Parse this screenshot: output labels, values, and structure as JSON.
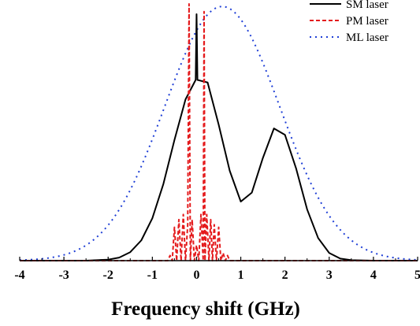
{
  "chart_data": {
    "type": "line",
    "xlabel": "Frequency shift (GHz)",
    "ylabel": "",
    "title": "",
    "xlim": [
      -4,
      5
    ],
    "ylim": [
      0,
      1
    ],
    "x_ticks": [
      "-4",
      "-3",
      "-2",
      "-1",
      "0",
      "1",
      "2",
      "3",
      "4",
      "5"
    ],
    "legend_position": "top-right",
    "colors": {
      "sm": "#000000",
      "pm": "#e41a1c",
      "ml": "#1f3fd6"
    },
    "series": [
      {
        "name": "SM laser",
        "style": "solid",
        "color": "#000000",
        "x": [
          -4.0,
          -2.5,
          -2.0,
          -1.75,
          -1.5,
          -1.25,
          -1.0,
          -0.75,
          -0.5,
          -0.25,
          -0.02,
          0.0,
          0.02,
          0.25,
          0.5,
          0.75,
          1.0,
          1.25,
          1.5,
          1.75,
          2.0,
          2.25,
          2.5,
          2.75,
          3.0,
          3.25,
          3.5,
          4.0,
          5.0
        ],
        "y": [
          0.0,
          0.0,
          0.004,
          0.012,
          0.033,
          0.079,
          0.165,
          0.299,
          0.47,
          0.628,
          0.704,
          0.96,
          0.704,
          0.694,
          0.53,
          0.35,
          0.23,
          0.265,
          0.4,
          0.515,
          0.49,
          0.36,
          0.2,
          0.088,
          0.03,
          0.008,
          0.002,
          0.0,
          0.0
        ]
      },
      {
        "name": "PM laser",
        "style": "dashed",
        "color": "#e41a1c",
        "x": [
          -4.0,
          -0.65,
          -0.6,
          -0.55,
          -0.5,
          -0.45,
          -0.4,
          -0.35,
          -0.3,
          -0.25,
          -0.2,
          -0.17,
          -0.14,
          -0.1,
          -0.05,
          0.0,
          0.05,
          0.1,
          0.15,
          0.17,
          0.19,
          0.23,
          0.28,
          0.32,
          0.36,
          0.4,
          0.45,
          0.5,
          0.55,
          0.6,
          0.65,
          0.7,
          0.75,
          5.0
        ],
        "y": [
          0.0,
          0.0,
          0.02,
          0.0,
          0.13,
          0.0,
          0.16,
          0.0,
          0.18,
          0.0,
          0.14,
          1.0,
          0.0,
          0.16,
          0.0,
          0.06,
          0.0,
          0.18,
          0.0,
          0.97,
          0.0,
          0.18,
          0.0,
          0.16,
          0.0,
          0.14,
          0.0,
          0.13,
          0.0,
          0.03,
          0.0,
          0.02,
          0.0,
          0.0
        ]
      },
      {
        "name": "ML laser",
        "style": "dotted",
        "color": "#1f3fd6",
        "gaussian": {
          "center": 0.58,
          "sigma": 1.3,
          "amplitude": 0.99
        }
      }
    ]
  }
}
